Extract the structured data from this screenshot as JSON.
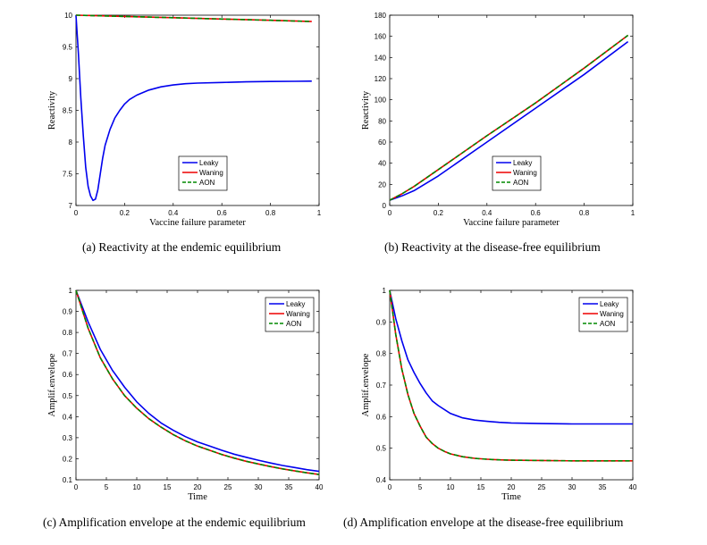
{
  "captions": {
    "a": "(a)  Reactivity at the endemic equilibrium",
    "b": "(b)  Reactivity at the disease-free equilibrium",
    "c": "(c)  Amplification envelope at the endemic equilibrium",
    "d": "(d)  Amplification envelope at the disease-free equilibrium"
  },
  "colors": {
    "leaky": "#0000ee",
    "waning": "#ee0000",
    "aon": "#008800",
    "axis": "#000000"
  },
  "chart_data": [
    {
      "id": "a",
      "type": "line",
      "title": "",
      "xlabel": "Vaccine failure parameter",
      "ylabel": "Reactivity",
      "xlim": [
        0,
        1
      ],
      "ylim": [
        7,
        10
      ],
      "xticks": [
        0,
        0.2,
        0.4,
        0.6,
        0.8,
        1
      ],
      "xtick_labels": [
        "0",
        "0.2",
        "0.4",
        "0.6",
        "0.8",
        "1"
      ],
      "yticks": [
        7,
        7.5,
        8,
        8.5,
        9,
        9.5,
        10
      ],
      "ytick_labels": [
        "7",
        "7.5",
        "8",
        "8.5",
        "9",
        "9.5",
        "10"
      ],
      "legend_position": "bottom-center",
      "series": [
        {
          "name": "Leaky",
          "style": "solid-blue",
          "x": [
            0,
            0.01,
            0.02,
            0.03,
            0.04,
            0.05,
            0.06,
            0.07,
            0.08,
            0.09,
            0.1,
            0.11,
            0.12,
            0.14,
            0.16,
            0.18,
            0.2,
            0.22,
            0.25,
            0.3,
            0.35,
            0.4,
            0.45,
            0.5,
            0.6,
            0.7,
            0.8,
            0.9,
            0.97
          ],
          "y": [
            10,
            9.4,
            8.7,
            8.1,
            7.6,
            7.3,
            7.15,
            7.08,
            7.1,
            7.25,
            7.5,
            7.75,
            7.95,
            8.2,
            8.38,
            8.5,
            8.6,
            8.67,
            8.74,
            8.82,
            8.87,
            8.9,
            8.92,
            8.93,
            8.94,
            8.95,
            8.955,
            8.958,
            8.96
          ]
        },
        {
          "name": "Waning",
          "style": "solid-red",
          "x": [
            0,
            0.2,
            0.4,
            0.6,
            0.8,
            0.97
          ],
          "y": [
            10,
            9.98,
            9.96,
            9.94,
            9.92,
            9.9
          ]
        },
        {
          "name": "AON",
          "style": "dashed-green",
          "x": [
            0,
            0.2,
            0.4,
            0.6,
            0.8,
            0.97
          ],
          "y": [
            10,
            9.98,
            9.96,
            9.94,
            9.92,
            9.9
          ]
        }
      ]
    },
    {
      "id": "b",
      "type": "line",
      "title": "",
      "xlabel": "Vaccine failure parameter",
      "ylabel": "Reactivity",
      "xlim": [
        0,
        1
      ],
      "ylim": [
        0,
        180
      ],
      "xticks": [
        0,
        0.2,
        0.4,
        0.6,
        0.8,
        1
      ],
      "xtick_labels": [
        "0",
        "0.2",
        "0.4",
        "0.6",
        "0.8",
        "1"
      ],
      "yticks": [
        0,
        20,
        40,
        60,
        80,
        100,
        120,
        140,
        160,
        180
      ],
      "ytick_labels": [
        "0",
        "20",
        "40",
        "60",
        "80",
        "100",
        "120",
        "140",
        "160",
        "180"
      ],
      "legend_position": "bottom-center",
      "series": [
        {
          "name": "Leaky",
          "style": "solid-blue",
          "x": [
            0,
            0.05,
            0.1,
            0.2,
            0.4,
            0.6,
            0.8,
            0.98
          ],
          "y": [
            5,
            9,
            14,
            28,
            60,
            92,
            124,
            155
          ]
        },
        {
          "name": "Waning",
          "style": "solid-red",
          "x": [
            0,
            0.05,
            0.1,
            0.2,
            0.4,
            0.6,
            0.8,
            0.98
          ],
          "y": [
            5,
            11,
            18,
            34,
            66,
            97,
            130,
            161
          ]
        },
        {
          "name": "AON",
          "style": "dashed-green",
          "x": [
            0,
            0.05,
            0.1,
            0.2,
            0.4,
            0.6,
            0.8,
            0.98
          ],
          "y": [
            5,
            11,
            18,
            34,
            66,
            97,
            130,
            161
          ]
        }
      ]
    },
    {
      "id": "c",
      "type": "line",
      "title": "",
      "xlabel": "Time",
      "ylabel": "Amplif.envelope",
      "xlim": [
        0,
        40
      ],
      "ylim": [
        0.1,
        1
      ],
      "xticks": [
        0,
        5,
        10,
        15,
        20,
        25,
        30,
        35,
        40
      ],
      "xtick_labels": [
        "0",
        "5",
        "10",
        "15",
        "20",
        "25",
        "30",
        "35",
        "40"
      ],
      "yticks": [
        0.1,
        0.2,
        0.3,
        0.4,
        0.5,
        0.6,
        0.7,
        0.8,
        0.9,
        1
      ],
      "ytick_labels": [
        "0.1",
        "0.2",
        "0.3",
        "0.4",
        "0.5",
        "0.6",
        "0.7",
        "0.8",
        "0.9",
        "1"
      ],
      "legend_position": "top-right",
      "series": [
        {
          "name": "Leaky",
          "style": "solid-blue",
          "x": [
            0,
            2,
            4,
            6,
            8,
            10,
            12,
            14,
            16,
            18,
            20,
            22,
            24,
            26,
            28,
            30,
            32,
            34,
            36,
            38,
            40
          ],
          "y": [
            1,
            0.85,
            0.72,
            0.62,
            0.54,
            0.47,
            0.415,
            0.37,
            0.335,
            0.305,
            0.28,
            0.26,
            0.24,
            0.222,
            0.207,
            0.193,
            0.18,
            0.168,
            0.158,
            0.148,
            0.14
          ]
        },
        {
          "name": "Waning",
          "style": "solid-red",
          "x": [
            0,
            2,
            4,
            6,
            8,
            10,
            12,
            14,
            16,
            18,
            20,
            22,
            24,
            26,
            28,
            30,
            32,
            34,
            36,
            38,
            40
          ],
          "y": [
            1,
            0.82,
            0.68,
            0.58,
            0.5,
            0.44,
            0.39,
            0.35,
            0.315,
            0.285,
            0.26,
            0.24,
            0.22,
            0.203,
            0.188,
            0.175,
            0.163,
            0.152,
            0.142,
            0.133,
            0.125
          ]
        },
        {
          "name": "AON",
          "style": "dashed-green",
          "x": [
            0,
            2,
            4,
            6,
            8,
            10,
            12,
            14,
            16,
            18,
            20,
            22,
            24,
            26,
            28,
            30,
            32,
            34,
            36,
            38,
            40
          ],
          "y": [
            1,
            0.82,
            0.68,
            0.58,
            0.5,
            0.44,
            0.39,
            0.35,
            0.315,
            0.285,
            0.26,
            0.24,
            0.22,
            0.203,
            0.188,
            0.175,
            0.163,
            0.152,
            0.142,
            0.133,
            0.125
          ]
        }
      ]
    },
    {
      "id": "d",
      "type": "line",
      "title": "",
      "xlabel": "Time",
      "ylabel": "Amplif.envelope",
      "xlim": [
        0,
        40
      ],
      "ylim": [
        0.4,
        1
      ],
      "xticks": [
        0,
        5,
        10,
        15,
        20,
        25,
        30,
        35,
        40
      ],
      "xtick_labels": [
        "0",
        "5",
        "10",
        "15",
        "20",
        "25",
        "30",
        "35",
        "40"
      ],
      "yticks": [
        0.4,
        0.5,
        0.6,
        0.7,
        0.8,
        0.9,
        1
      ],
      "ytick_labels": [
        "0.4",
        "0.5",
        "0.6",
        "0.7",
        "0.8",
        "0.9",
        "1"
      ],
      "legend_position": "top-right",
      "series": [
        {
          "name": "Leaky",
          "style": "solid-blue",
          "x": [
            0,
            1,
            2,
            3,
            4,
            5,
            6,
            7,
            8,
            10,
            12,
            14,
            16,
            18,
            20,
            25,
            30,
            35,
            40
          ],
          "y": [
            1,
            0.91,
            0.84,
            0.78,
            0.74,
            0.705,
            0.675,
            0.65,
            0.635,
            0.61,
            0.596,
            0.589,
            0.585,
            0.582,
            0.58,
            0.578,
            0.577,
            0.577,
            0.577
          ]
        },
        {
          "name": "Waning",
          "style": "solid-red",
          "x": [
            0,
            1,
            2,
            3,
            4,
            5,
            6,
            7,
            8,
            9,
            10,
            12,
            14,
            16,
            18,
            20,
            25,
            30,
            35,
            40
          ],
          "y": [
            1,
            0.86,
            0.75,
            0.67,
            0.61,
            0.57,
            0.535,
            0.515,
            0.5,
            0.49,
            0.482,
            0.473,
            0.468,
            0.465,
            0.463,
            0.462,
            0.461,
            0.46,
            0.46,
            0.46
          ]
        },
        {
          "name": "AON",
          "style": "dashed-green",
          "x": [
            0,
            1,
            2,
            3,
            4,
            5,
            6,
            7,
            8,
            9,
            10,
            12,
            14,
            16,
            18,
            20,
            25,
            30,
            35,
            40
          ],
          "y": [
            1,
            0.86,
            0.75,
            0.67,
            0.61,
            0.57,
            0.535,
            0.515,
            0.5,
            0.49,
            0.482,
            0.473,
            0.468,
            0.465,
            0.463,
            0.462,
            0.461,
            0.46,
            0.46,
            0.46
          ]
        }
      ]
    }
  ]
}
